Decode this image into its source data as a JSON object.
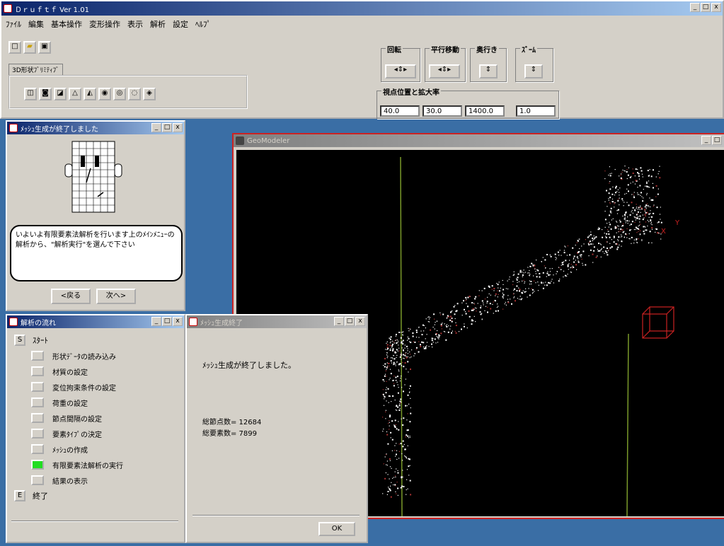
{
  "main": {
    "title": "Ｄｒｕｆｔｆ Ver 1.01",
    "menu": [
      "ﾌｧｲﾙ",
      "編集",
      "基本操作",
      "変形操作",
      "表示",
      "解析",
      "設定",
      "ﾍﾙﾌﾟ"
    ],
    "tab_label": "3D形状ﾌﾞﾘﾐﾃｨﾌﾞ",
    "groups": {
      "rotate": "回転",
      "translate": "平行移動",
      "depth": "奥行き",
      "zoom": "ｽﾞｰﾑ",
      "viewpoint": "視点位置と拡大率"
    },
    "view_values": [
      "40.0",
      "30.0",
      "1400.0",
      "1.0"
    ]
  },
  "assistant": {
    "title": "ﾒｯｼｭ生成が終了しました",
    "message": "いよいよ有限要素法解析を行います上のﾒｲﾝﾒﾆｭｰの解析から、\"解析実行\"を選んで下さい",
    "back_label": "<戻る",
    "next_label": "次へ>"
  },
  "steps": {
    "title": "解析の流れ",
    "start_marker": "S",
    "start_label": "ｽﾀｰﾄ",
    "end_marker": "E",
    "end_label": "終了",
    "items": [
      {
        "label": "形状ﾃﾞｰﾀの読み込み",
        "active": false
      },
      {
        "label": "材質の設定",
        "active": false
      },
      {
        "label": "変位拘束条件の設定",
        "active": false
      },
      {
        "label": "荷重の設定",
        "active": false
      },
      {
        "label": "節点間隔の設定",
        "active": false
      },
      {
        "label": "要素ﾀｲﾌﾟの決定",
        "active": false
      },
      {
        "label": "ﾒｯｼｭの作成",
        "active": false
      },
      {
        "label": "有限要素法解析の実行",
        "active": true
      },
      {
        "label": "結果の表示",
        "active": false
      }
    ]
  },
  "dialog": {
    "title": "ﾒｯｼｭ生成終了",
    "message": "ﾒｯｼｭ生成が終了しました。",
    "nodes": "総節点数= 12684",
    "elements": "総要素数= 7899",
    "ok_label": "OK"
  },
  "viewer": {
    "title": "GeoModeler"
  },
  "colors": {
    "desktop": "#3a6ea5",
    "active_step": "#22dd22",
    "viewer_border": "#cc2222"
  }
}
